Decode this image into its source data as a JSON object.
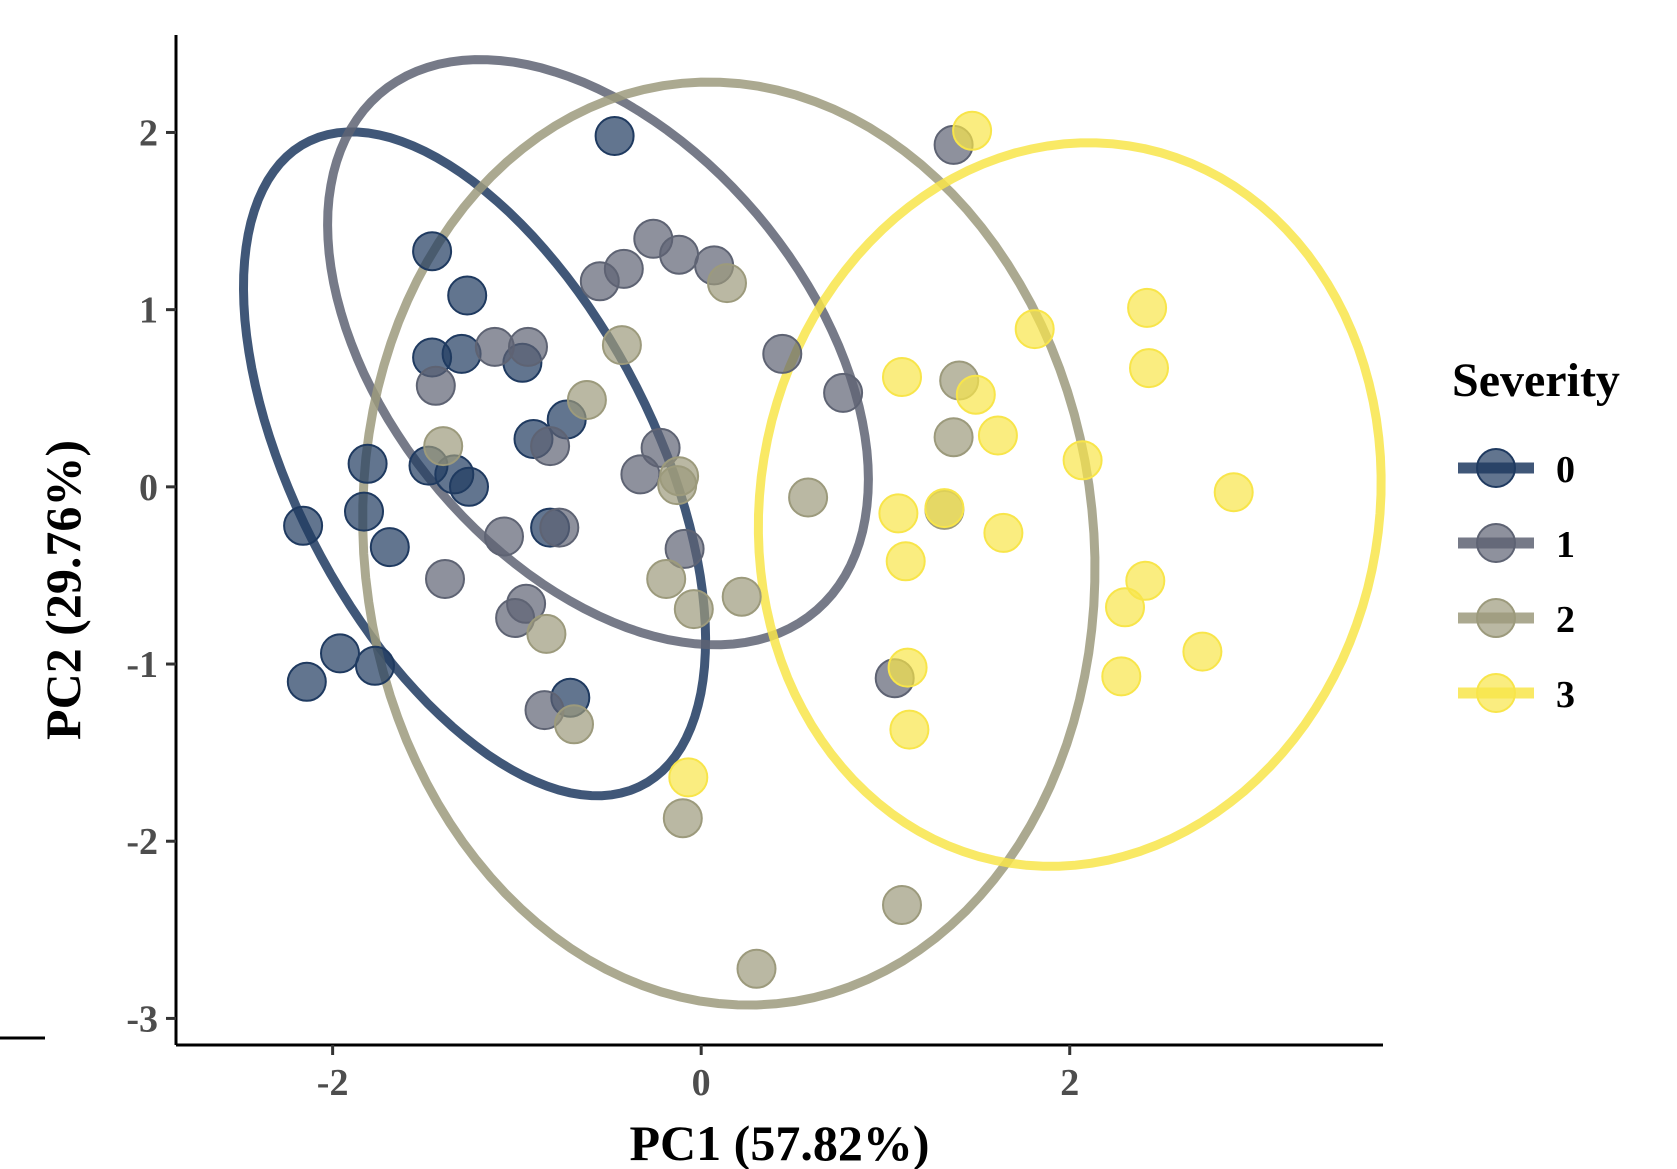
{
  "chart_data": {
    "type": "scatter",
    "xlabel": "PC1 (57.82%)",
    "ylabel": "PC2 (29.76%)",
    "xlim": [
      -2.85,
      3.7
    ],
    "ylim": [
      -3.15,
      2.55
    ],
    "xticks": [
      -2,
      0,
      2
    ],
    "xtick_labels": [
      "-2",
      "0",
      "2"
    ],
    "yticks": [
      -3,
      -2,
      -1,
      0,
      1,
      2
    ],
    "ytick_labels": [
      "-3",
      "-2",
      "-1",
      "0",
      "1",
      "2"
    ],
    "grid": false,
    "legend": {
      "title": "Severity",
      "placement": "right"
    },
    "series": [
      {
        "name": "0",
        "color": "#1f3a60",
        "ellipse": {
          "cx": -1.23,
          "cy": 0.13,
          "rx": 2.03,
          "ry": 0.98,
          "angle_deg": -63.9
        },
        "points": [
          [
            -0.47,
            1.98
          ],
          [
            -1.46,
            1.33
          ],
          [
            -1.27,
            1.08
          ],
          [
            -1.46,
            0.73
          ],
          [
            -1.3,
            0.75
          ],
          [
            -0.97,
            0.7
          ],
          [
            -0.73,
            0.38
          ],
          [
            -0.91,
            0.27
          ],
          [
            -1.81,
            0.13
          ],
          [
            -1.48,
            0.12
          ],
          [
            -1.34,
            0.07
          ],
          [
            -1.26,
            0.0
          ],
          [
            -1.83,
            -0.14
          ],
          [
            -2.16,
            -0.22
          ],
          [
            -0.82,
            -0.23
          ],
          [
            -1.69,
            -0.34
          ],
          [
            -1.96,
            -0.94
          ],
          [
            -1.77,
            -1.01
          ],
          [
            -2.14,
            -1.1
          ],
          [
            -0.71,
            -1.19
          ]
        ]
      },
      {
        "name": "1",
        "color": "#5e6373",
        "ellipse": {
          "cx": -0.56,
          "cy": 0.76,
          "rx": 1.88,
          "ry": 1.16,
          "angle_deg": -52.6
        },
        "points": [
          [
            -0.26,
            1.4
          ],
          [
            -0.42,
            1.23
          ],
          [
            -0.55,
            1.16
          ],
          [
            -0.12,
            1.31
          ],
          [
            0.07,
            1.25
          ],
          [
            -1.12,
            0.79
          ],
          [
            -0.94,
            0.79
          ],
          [
            -1.44,
            0.57
          ],
          [
            0.44,
            0.75
          ],
          [
            0.77,
            0.53
          ],
          [
            -0.82,
            0.23
          ],
          [
            -0.22,
            0.22
          ],
          [
            -0.33,
            0.07
          ],
          [
            -0.77,
            -0.23
          ],
          [
            -1.07,
            -0.28
          ],
          [
            -0.09,
            -0.35
          ],
          [
            -1.39,
            -0.52
          ],
          [
            -0.95,
            -0.66
          ],
          [
            -1.01,
            -0.74
          ],
          [
            -0.85,
            -1.26
          ],
          [
            1.37,
            1.93
          ],
          [
            1.05,
            -1.08
          ]
        ]
      },
      {
        "name": "2",
        "color": "#9c9a7c",
        "ellipse": {
          "cx": 0.15,
          "cy": -0.32,
          "rx": 2.61,
          "ry": 1.98,
          "angle_deg": -84.4
        },
        "points": [
          [
            0.14,
            1.15
          ],
          [
            -0.43,
            0.8
          ],
          [
            -0.62,
            0.49
          ],
          [
            -1.4,
            0.23
          ],
          [
            -0.12,
            0.06
          ],
          [
            -0.13,
            0.01
          ],
          [
            -0.19,
            -0.52
          ],
          [
            -0.04,
            -0.69
          ],
          [
            0.22,
            -0.62
          ],
          [
            -0.84,
            -0.83
          ],
          [
            -0.69,
            -1.34
          ],
          [
            -0.1,
            -1.87
          ],
          [
            1.4,
            0.6
          ],
          [
            1.37,
            0.28
          ],
          [
            1.32,
            -0.13
          ],
          [
            0.58,
            -0.06
          ],
          [
            1.09,
            -2.36
          ],
          [
            0.3,
            -2.72
          ]
        ]
      },
      {
        "name": "3",
        "color": "#f8e54a",
        "ellipse": {
          "cx": 2.0,
          "cy": -0.1,
          "rx": 2.05,
          "ry": 1.68,
          "angle_deg": 81.0
        },
        "points": [
          [
            1.47,
            2.01
          ],
          [
            2.42,
            1.01
          ],
          [
            1.81,
            0.89
          ],
          [
            2.43,
            0.67
          ],
          [
            1.09,
            0.62
          ],
          [
            1.49,
            0.52
          ],
          [
            1.61,
            0.29
          ],
          [
            2.07,
            0.15
          ],
          [
            2.89,
            -0.03
          ],
          [
            1.07,
            -0.15
          ],
          [
            1.32,
            -0.12
          ],
          [
            1.64,
            -0.26
          ],
          [
            1.11,
            -0.42
          ],
          [
            2.41,
            -0.53
          ],
          [
            2.3,
            -0.68
          ],
          [
            2.72,
            -0.93
          ],
          [
            1.12,
            -1.02
          ],
          [
            2.28,
            -1.07
          ],
          [
            1.13,
            -1.37
          ],
          [
            -0.07,
            -1.64
          ]
        ]
      }
    ]
  }
}
